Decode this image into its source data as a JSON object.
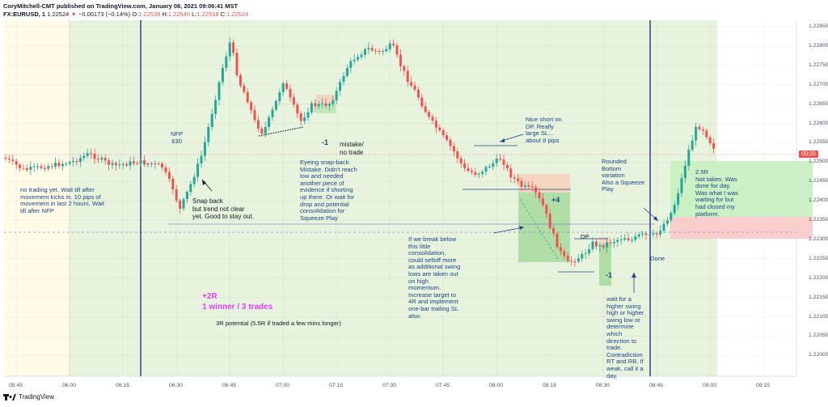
{
  "header": {
    "line1": "CoryMitchell-CMT published on TradingView.com, January 08, 2021 09:06:41 MST",
    "symbol": "FX:EURUSD, 1",
    "last": "1.22524",
    "change": "−0.00173 (−0.14%)",
    "ohlc_prefix_o": "O:",
    "open": "1.22539",
    "ohlc_prefix_h": "H:",
    "high": "1.22540",
    "ohlc_prefix_l": "L:",
    "low": "1.22518",
    "ohlc_prefix_c": "C:",
    "close": "1.22524"
  },
  "price_tag": "00:20",
  "price_axis": [
    "1.22850",
    "1.22800",
    "1.22750",
    "1.22700",
    "1.22650",
    "1.22600",
    "1.22550",
    "1.22500",
    "1.22450",
    "1.22400",
    "1.22350",
    "1.22300",
    "1.22250",
    "1.22200",
    "1.22150",
    "1.22100",
    "1.22050",
    "1.22000"
  ],
  "time_axis": [
    "05:45",
    "06:00",
    "06:15",
    "06:30",
    "06:45",
    "07:00",
    "07:15",
    "07:30",
    "07:45",
    "08:00",
    "08:15",
    "08:30",
    "08:45",
    "09:00",
    "09:15"
  ],
  "annotations": {
    "no_trading": "no trading yet. Wait till after\nmovement kicks in. 10 pips of\nmovement in last 2 hours. Wait\ntill after NFP",
    "nfp": "NFP\n630",
    "snap_back": "Snap back\nbut trend not clear\nyet. Good to stay out.",
    "eyeing": "Eyeing snap-back.\nMistake. Didn't reach\nlow and needed\nanother piece of\nevidence if shorting\nup there. Or wait for\ndrop and potential\nconsolidation for\nSqueeze Play",
    "minus1_a": "-1",
    "mistake": "mistake/\nno trade",
    "nice_short": "Nice short on\nDP. Really\nlarge SL...\nabout 8 pips",
    "plus4": "+4",
    "if_break": "If we break below\nthis little\nconsolidation,\ncould selloff more\nas additional swing\nlows are taken out\non high\nmomentum.\nIncrease target to\n4R and implement\none-bar trailing SL\nalso.",
    "dp": "DP",
    "minus1_b": "-1",
    "wait_for": "wait for a\nhigher swing\nhigh or higher\nswing low ot\ndetermine\nwhich\ndirection to\ntrade.\nContradiction\nRT and RB. If\nweak, call it a\nday.",
    "rounded": "Rounded\nBottom\nvariation\nAlso a Squeeze\nPlay",
    "done": "Done",
    "r25": "2.5R\nNot taken. Was\ndone for day.\nWas what I was\nwaiting for but\nhad closed my\nplatform.",
    "plus2r": "+2R",
    "winners": "1 winner / 3 trades",
    "potential": "3R potential (5.5R if traded a few mins longer)"
  },
  "footer": {
    "brand": "TradingView"
  },
  "colors": {
    "up": "#26a69a",
    "down": "#ef5350",
    "session_bg": "#e8f3de",
    "premarket_bg": "#fffbe6",
    "annotation": "#1c4587",
    "magenta": "#e040fb",
    "vline": "#1a237e"
  }
}
